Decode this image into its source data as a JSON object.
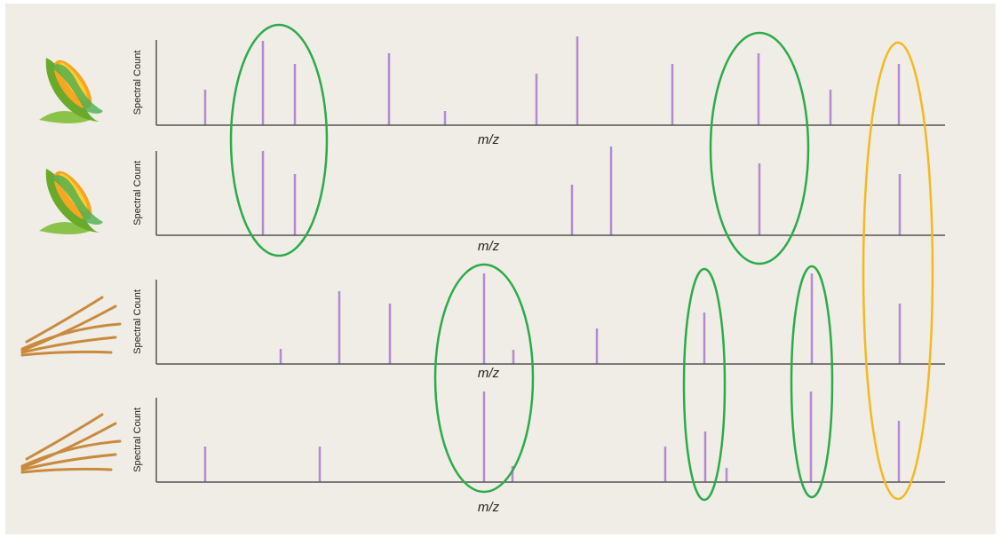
{
  "panels": [
    {
      "y_label": "Spectral Count",
      "x_label": "m/z"
    },
    {
      "y_label": "Spectral Count",
      "x_label": "m/z"
    },
    {
      "y_label": "Spectral Count",
      "x_label": "m/z"
    },
    {
      "y_label": "Spectral Count",
      "x_label": "m/z"
    }
  ]
}
